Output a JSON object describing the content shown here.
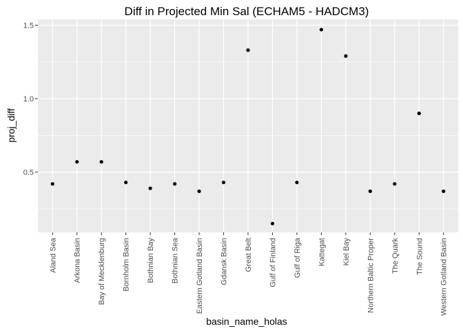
{
  "chart_data": {
    "type": "scatter",
    "title": "Diff in Projected Min Sal (ECHAM5 - HADCM3)",
    "xlabel": "basin_name_holas",
    "ylabel": "proj_diff",
    "categories": [
      "Aland Sea",
      "Arkona Basin",
      "Bay of Mecklenburg",
      "Bornholm Basin",
      "Bothnian Bay",
      "Bothnian Sea",
      "Eastern Gotland Basin",
      "Gdansk Basin",
      "Great Belt",
      "Gulf of Finland",
      "Gulf of Riga",
      "Kattegat",
      "Kiel Bay",
      "Northern Baltic Proper",
      "The Quark",
      "The Sound",
      "Western Gotland Basin"
    ],
    "values": [
      0.42,
      0.57,
      0.57,
      0.43,
      0.39,
      0.42,
      0.37,
      0.43,
      1.33,
      0.15,
      0.43,
      1.47,
      1.29,
      0.37,
      0.42,
      0.9,
      0.37
    ],
    "ylim": [
      0.09,
      1.54
    ],
    "yticks": [
      0.5,
      1.0,
      1.5
    ],
    "ytick_labels": [
      "0.5",
      "1.0",
      "1.5"
    ],
    "grid": true,
    "panel_background": "#ebebeb",
    "grid_color": "#ffffff",
    "point_color": "#000000"
  }
}
